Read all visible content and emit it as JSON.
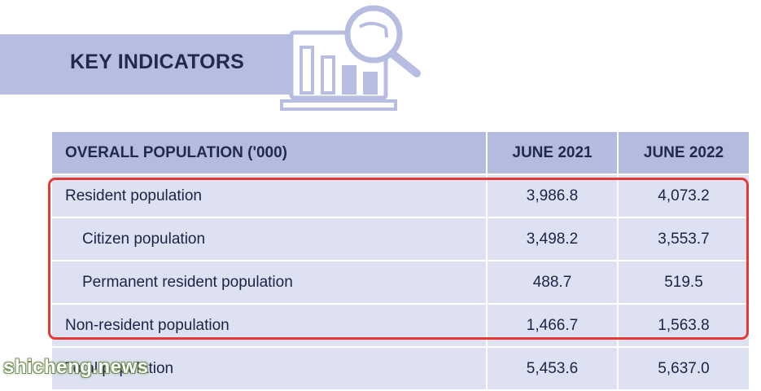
{
  "banner": {
    "title": "KEY INDICATORS"
  },
  "table": {
    "header": {
      "label": "OVERALL POPULATION ('000)",
      "col1": "JUNE 2021",
      "col2": "JUNE 2022"
    },
    "rows": [
      {
        "label": "Resident population",
        "v2021": "3,986.8",
        "v2022": "4,073.2"
      },
      {
        "label": "Citizen population",
        "v2021": "3,498.2",
        "v2022": "3,553.7"
      },
      {
        "label": "Permanent resident population",
        "v2021": "488.7",
        "v2022": "519.5"
      },
      {
        "label": "Non-resident population",
        "v2021": "1,466.7",
        "v2022": "1,563.8"
      },
      {
        "label": "Total population",
        "v2021": "5,453.6",
        "v2022": "5,637.0"
      }
    ]
  },
  "colors": {
    "banner": "#b6bde0",
    "header_row": "#b3bbde",
    "body_row": "#dde1f1",
    "text": "#1d2344",
    "highlight": "#e33a35"
  },
  "icons": {
    "illustration": "laptop-bar-chart-magnifier-icon"
  },
  "watermark": "shicheng.news"
}
